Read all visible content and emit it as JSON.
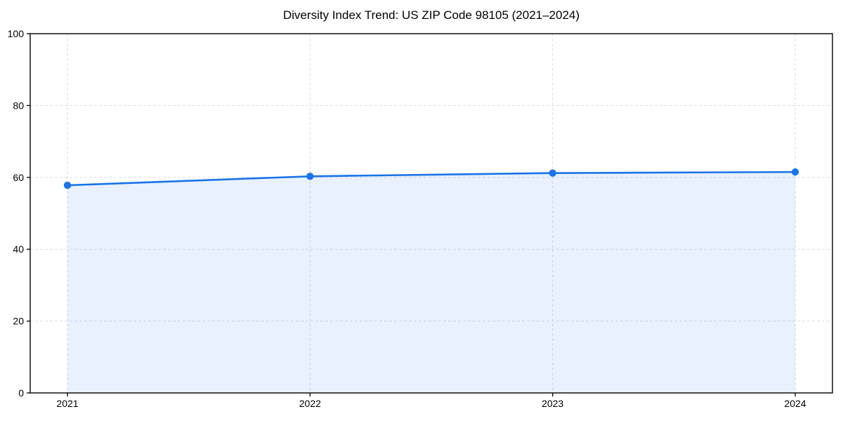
{
  "chart_data": {
    "type": "line",
    "title": "Diversity Index Trend: US ZIP Code 98105 (2021–2024)",
    "x": [
      2021,
      2022,
      2023,
      2024
    ],
    "series": [
      {
        "name": "Diversity Index",
        "values": [
          57.8,
          60.3,
          61.2,
          61.5
        ]
      }
    ],
    "xlabel": "",
    "ylabel": "",
    "ylim": [
      0,
      100
    ],
    "yticks": [
      0,
      20,
      40,
      60,
      80,
      100
    ],
    "xticks": [
      "2021",
      "2022",
      "2023",
      "2024"
    ],
    "grid": true,
    "grid_style": "dashed",
    "legend": "none",
    "area_fill": true,
    "markers": true,
    "colors": {
      "line": "#1a73e8",
      "marker": "#1a73e8",
      "fill": "rgba(26,115,232,0.10)",
      "grid": "#dedede",
      "axis": "#000000",
      "text": "#000000",
      "background": "#ffffff"
    }
  }
}
